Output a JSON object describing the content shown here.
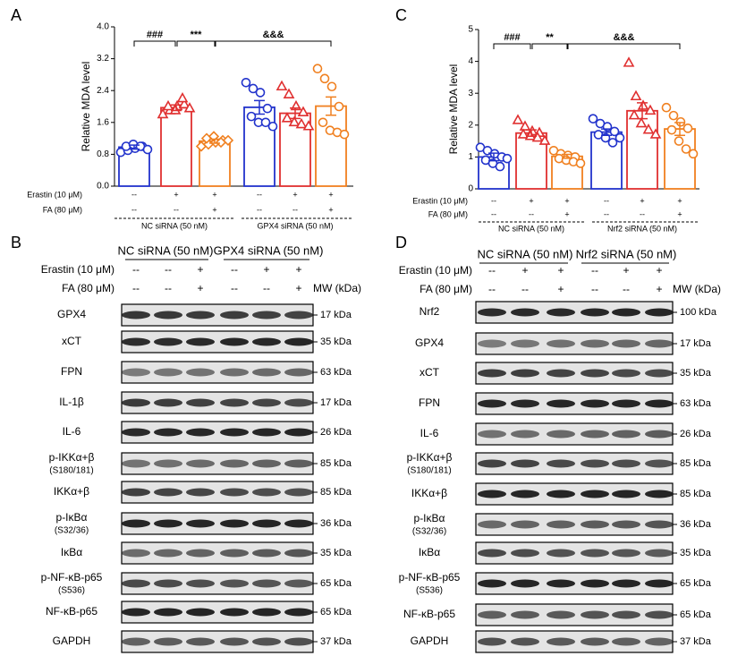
{
  "chart_data": [
    {
      "type": "bar",
      "panel": "A",
      "y_label": "Relative MDA level",
      "categories": [
        null,
        null,
        null,
        null,
        null,
        null
      ],
      "values": [
        0.98,
        1.97,
        1.13,
        1.98,
        1.83,
        2.01
      ],
      "errors": [
        0.05,
        0.07,
        0.05,
        0.17,
        0.13,
        0.23
      ],
      "colors": [
        "#2233cc",
        "#e03030",
        "#f08020",
        "#2233cc",
        "#e03030",
        "#f08020"
      ],
      "markers": [
        "circle",
        "triangle",
        "diamond",
        "circle",
        "triangle",
        "circle"
      ],
      "points": [
        [
          0.85,
          0.9,
          0.95,
          1.0,
          1.0,
          1.05,
          1.0,
          0.92
        ],
        [
          1.8,
          1.9,
          2.0,
          2.05,
          2.0,
          1.9,
          2.2,
          1.95
        ],
        [
          1.0,
          1.05,
          1.1,
          1.15,
          1.2,
          1.25,
          1.1,
          1.15
        ],
        [
          2.6,
          2.45,
          2.35,
          1.95,
          1.75,
          1.6,
          1.6,
          1.5
        ],
        [
          2.5,
          2.3,
          2.0,
          1.85,
          1.7,
          1.6,
          1.55,
          1.5
        ],
        [
          2.95,
          2.7,
          2.5,
          2.0,
          1.6,
          1.4,
          1.35,
          1.3
        ]
      ],
      "ylim": [
        0,
        4
      ],
      "yticks": [
        {
          "value": 0,
          "label": "0.0"
        },
        0.8,
        1.6,
        2.4,
        3.2,
        {
          "value": 4,
          "label": "4.0"
        }
      ],
      "annotations": [
        "###",
        "***",
        "&&&"
      ],
      "treatments": [
        {
          "name": "Erastin (10 μM)",
          "values": [
            "--",
            "+",
            "+",
            "--",
            "+",
            "+"
          ]
        },
        {
          "name": "FA (80 μM)",
          "values": [
            "--",
            "--",
            "+",
            "--",
            "--",
            "+"
          ]
        }
      ],
      "groups": [
        "NC siRNA (50 nM)",
        "GPX4 siRNA (50 nM)"
      ]
    },
    {
      "type": "bar",
      "panel": "C",
      "y_label": "Relative MDA level",
      "categories": [
        null,
        null,
        null,
        null,
        null,
        null
      ],
      "values": [
        1.0,
        1.75,
        1.02,
        1.78,
        2.45,
        1.88
      ],
      "errors": [
        0.12,
        0.1,
        0.06,
        0.1,
        0.25,
        0.2
      ],
      "colors": [
        "#2233cc",
        "#e03030",
        "#f08020",
        "#2233cc",
        "#e03030",
        "#f08020"
      ],
      "markers": [
        "circle",
        "triangle",
        "circle",
        "circle",
        "triangle",
        "circle"
      ],
      "points": [
        [
          1.3,
          1.2,
          1.1,
          1.0,
          0.9,
          0.8,
          0.7,
          0.95
        ],
        [
          2.15,
          1.95,
          1.8,
          1.75,
          1.7,
          1.65,
          1.6,
          1.5
        ],
        [
          1.2,
          1.1,
          1.05,
          1.0,
          0.95,
          0.9,
          0.85,
          0.8
        ],
        [
          2.2,
          2.05,
          1.95,
          1.8,
          1.7,
          1.6,
          1.45,
          1.6
        ],
        [
          3.95,
          2.9,
          2.6,
          2.45,
          2.3,
          2.05,
          1.85,
          1.7
        ],
        [
          2.55,
          2.3,
          2.1,
          1.9,
          1.85,
          1.5,
          1.25,
          1.1
        ]
      ],
      "ylim": [
        0,
        5
      ],
      "yticks": [
        0,
        1,
        2,
        3,
        4,
        5
      ],
      "annotations": [
        "###",
        "**",
        "&&&"
      ],
      "treatments": [
        {
          "name": "Erastin (10 μM)",
          "values": [
            "--",
            "+",
            "+",
            "--",
            "+",
            "+"
          ]
        },
        {
          "name": "FA (80 μM)",
          "values": [
            "--",
            "--",
            "+",
            "--",
            "--",
            "+"
          ]
        }
      ],
      "groups": [
        "NC siRNA (50 nM)",
        "Nrf2 siRNA (50 nM)"
      ]
    }
  ],
  "blots": [
    {
      "panel": "B",
      "groups": [
        "NC siRNA (50 nM)",
        "GPX4 siRNA (50 nM)"
      ],
      "treatments": [
        {
          "name": "Erastin (10 μM)",
          "values": [
            "--",
            "--",
            "+",
            "--",
            "+",
            "+"
          ]
        },
        {
          "name": "FA (80 μM)",
          "values": [
            "--",
            "--",
            "+",
            "--",
            "--",
            "+"
          ]
        }
      ],
      "mw_header": "MW (kDa)",
      "rows": [
        {
          "label": "GPX4",
          "mw": "17 kDa"
        },
        {
          "label": "xCT",
          "mw": "35 kDa"
        },
        {
          "label": "FPN",
          "mw": "63 kDa"
        },
        {
          "label": "IL-1β",
          "mw": "17 kDa"
        },
        {
          "label": "IL-6",
          "mw": "26 kDa"
        },
        {
          "label": "p-IKKα+β",
          "sub": "(S180/181)",
          "mw": "85 kDa"
        },
        {
          "label": "IKKα+β",
          "mw": "85 kDa"
        },
        {
          "label": "p-IκBα",
          "sub": "(S32/36)",
          "mw": "36 kDa"
        },
        {
          "label": "IκBα",
          "mw": "35 kDa"
        },
        {
          "label": "p-NF-κB-p65",
          "sub": "(S536)",
          "mw": "65 kDa"
        },
        {
          "label": "NF-κB-p65",
          "mw": "65 kDa"
        },
        {
          "label": "GAPDH",
          "mw": "37 kDa"
        }
      ]
    },
    {
      "panel": "D",
      "groups": [
        "NC siRNA (50 nM)",
        "Nrf2 siRNA (50 nM)"
      ],
      "treatments": [
        {
          "name": "Erastin (10 μM)",
          "values": [
            "--",
            "+",
            "+",
            "--",
            "+",
            "+"
          ]
        },
        {
          "name": "FA (80 μM)",
          "values": [
            "--",
            "--",
            "+",
            "--",
            "--",
            "+"
          ]
        }
      ],
      "mw_header": "MW (kDa)",
      "rows": [
        {
          "label": "Nrf2",
          "mw": "100 kDa"
        },
        {
          "label": "GPX4",
          "mw": "17 kDa"
        },
        {
          "label": "xCT",
          "mw": "35 kDa"
        },
        {
          "label": "FPN",
          "mw": "63 kDa"
        },
        {
          "label": "IL-6",
          "mw": "26 kDa"
        },
        {
          "label": "p-IKKα+β",
          "sub": "(S180/181)",
          "mw": "85 kDa"
        },
        {
          "label": "IKKα+β",
          "mw": "85 kDa"
        },
        {
          "label": "p-IκBα",
          "sub": "(S32/36)",
          "mw": "36 kDa"
        },
        {
          "label": "IκBα",
          "mw": "35 kDa"
        },
        {
          "label": "p-NF-κB-p65",
          "sub": "(S536)",
          "mw": "65 kDa"
        },
        {
          "label": "NF-κB-p65",
          "mw": "65 kDa"
        },
        {
          "label": "GAPDH",
          "mw": "37 kDa"
        }
      ]
    }
  ]
}
